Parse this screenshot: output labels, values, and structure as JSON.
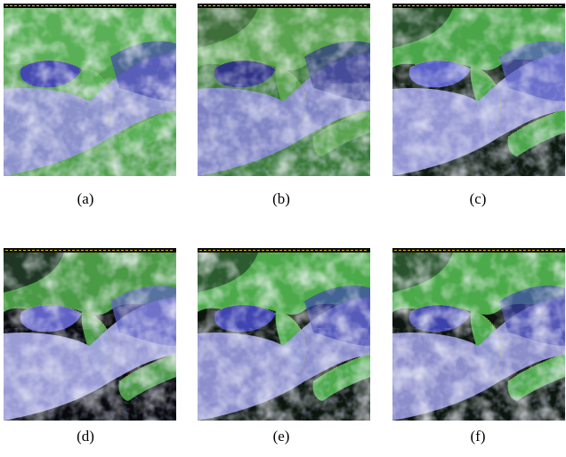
{
  "figure": {
    "panels": [
      {
        "label": "(a)",
        "variant": "a"
      },
      {
        "label": "(b)",
        "variant": "b"
      },
      {
        "label": "(c)",
        "variant": "c"
      },
      {
        "label": "(d)",
        "variant": "d"
      },
      {
        "label": "(e)",
        "variant": "e"
      },
      {
        "label": "(f)",
        "variant": "f"
      }
    ],
    "colors": {
      "land_green": "#4fa04a",
      "sea_blue": "#3a3fa0",
      "cloud_white": "#e8eaf4",
      "cloud_lavender": "#9a9ad6",
      "dark_gap": "#0b0b14"
    }
  }
}
